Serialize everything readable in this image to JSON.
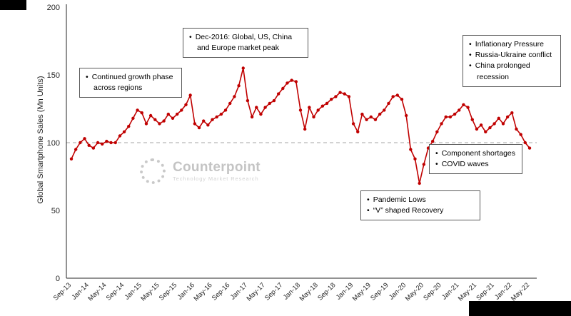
{
  "y_axis_title": "Global Smartphone Sales (Mn Units)",
  "watermark": {
    "name": "Counterpoint",
    "subtitle": "Technology Market Research"
  },
  "annotations": [
    {
      "id": "growth-phase",
      "items": [
        "Continued growth phase across regions"
      ]
    },
    {
      "id": "dec-2016-peak",
      "items": [
        "Dec-2016: Global, US, China and Europe market peak"
      ]
    },
    {
      "id": "macro-headwinds",
      "items": [
        "Inflationary Pressure",
        "Russia-Ukraine conflict",
        "China prolonged recession"
      ]
    },
    {
      "id": "supply-issues",
      "items": [
        "Component shortages",
        "COVID waves"
      ]
    },
    {
      "id": "pandemic",
      "items": [
        "Pandemic Lows",
        "“V” shaped Recovery"
      ]
    }
  ],
  "chart_data": {
    "type": "line",
    "title": "",
    "xlabel": "",
    "ylabel": "Global Smartphone Sales (Mn Units)",
    "ylim": [
      0,
      200
    ],
    "yticks": [
      0,
      50,
      100,
      150,
      200
    ],
    "x_tick_every": 4,
    "line_color": "#c00000",
    "gridline_at": 100,
    "grid_style": "dashed",
    "legend": "none",
    "x": [
      "Sep-13",
      "Oct-13",
      "Nov-13",
      "Dec-13",
      "Jan-14",
      "Feb-14",
      "Mar-14",
      "Apr-14",
      "May-14",
      "Jun-14",
      "Jul-14",
      "Aug-14",
      "Sep-14",
      "Oct-14",
      "Nov-14",
      "Dec-14",
      "Jan-15",
      "Feb-15",
      "Mar-15",
      "Apr-15",
      "May-15",
      "Jun-15",
      "Jul-15",
      "Aug-15",
      "Sep-15",
      "Oct-15",
      "Nov-15",
      "Dec-15",
      "Jan-16",
      "Feb-16",
      "Mar-16",
      "Apr-16",
      "May-16",
      "Jun-16",
      "Jul-16",
      "Aug-16",
      "Sep-16",
      "Oct-16",
      "Nov-16",
      "Dec-16",
      "Jan-17",
      "Feb-17",
      "Mar-17",
      "Apr-17",
      "May-17",
      "Jun-17",
      "Jul-17",
      "Aug-17",
      "Sep-17",
      "Oct-17",
      "Nov-17",
      "Dec-17",
      "Jan-18",
      "Feb-18",
      "Mar-18",
      "Apr-18",
      "May-18",
      "Jun-18",
      "Jul-18",
      "Aug-18",
      "Sep-18",
      "Oct-18",
      "Nov-18",
      "Dec-18",
      "Jan-19",
      "Feb-19",
      "Mar-19",
      "Apr-19",
      "May-19",
      "Jun-19",
      "Jul-19",
      "Aug-19",
      "Sep-19",
      "Oct-19",
      "Nov-19",
      "Dec-19",
      "Jan-20",
      "Feb-20",
      "Mar-20",
      "Apr-20",
      "May-20",
      "Jun-20",
      "Jul-20",
      "Aug-20",
      "Sep-20",
      "Oct-20",
      "Nov-20",
      "Dec-20",
      "Jan-21",
      "Feb-21",
      "Mar-21",
      "Apr-21",
      "May-21",
      "Jun-21",
      "Jul-21",
      "Aug-21",
      "Sep-21",
      "Oct-21",
      "Nov-21",
      "Dec-21",
      "Jan-22",
      "Feb-22",
      "Mar-22",
      "Apr-22",
      "May-22"
    ],
    "values": [
      88,
      95,
      100,
      103,
      98,
      96,
      100,
      99,
      101,
      100,
      100,
      105,
      108,
      112,
      118,
      124,
      122,
      114,
      120,
      117,
      114,
      116,
      121,
      118,
      121,
      124,
      128,
      135,
      114,
      111,
      116,
      113,
      117,
      119,
      121,
      124,
      129,
      134,
      142,
      155,
      131,
      119,
      126,
      121,
      126,
      129,
      131,
      136,
      140,
      144,
      146,
      145,
      124,
      110,
      126,
      119,
      124,
      127,
      129,
      132,
      134,
      137,
      136,
      134,
      114,
      108,
      121,
      117,
      119,
      117,
      121,
      124,
      129,
      134,
      135,
      132,
      120,
      95,
      88,
      70,
      84,
      96,
      101,
      108,
      114,
      119,
      119,
      121,
      124,
      128,
      126,
      117,
      110,
      113,
      108,
      111,
      114,
      118,
      114,
      119,
      122,
      110,
      106,
      100,
      96
    ]
  }
}
